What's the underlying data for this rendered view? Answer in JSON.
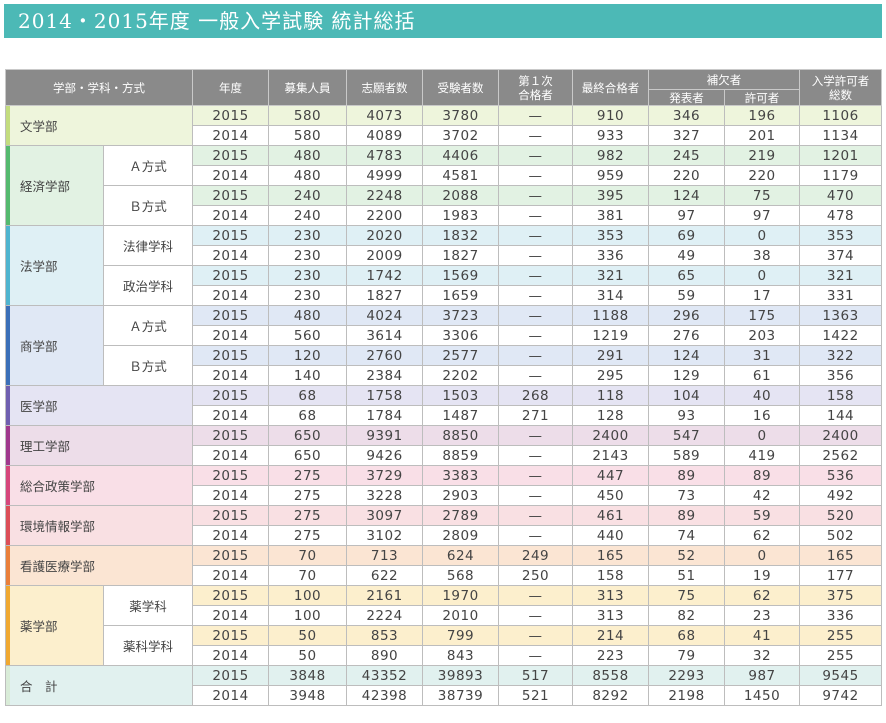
{
  "title": "2014・2015年度 一般入学試験 統計総括",
  "headers": {
    "dept": "学部・学科・方式",
    "year": "年度",
    "quota": "募集人員",
    "applicants": "志願者数",
    "examinees": "受験者数",
    "first_pass_line1": "第１次",
    "first_pass_line2": "合格者",
    "final_pass": "最終合格者",
    "supplement": "補欠者",
    "announced": "発表者",
    "permitted": "許可者",
    "admit_line1": "入学許可者",
    "admit_line2": "総数"
  },
  "colors": {
    "header": "#8a8a8a",
    "title_bar": "#4cb9b6",
    "faculties": {
      "bungaku": {
        "bar": "#c3dc7e",
        "bg": "#eef5dc"
      },
      "keizai": {
        "bar": "#54b96e",
        "bg": "#e2f2e3"
      },
      "hogaku": {
        "bar": "#4fb4cf",
        "bg": "#dff0f5"
      },
      "shogaku": {
        "bar": "#3b6fb8",
        "bg": "#e0e8f5"
      },
      "igaku": {
        "bar": "#6f5fb0",
        "bg": "#e5e4f3"
      },
      "riko": {
        "bar": "#a0388d",
        "bg": "#eddde9"
      },
      "sogo": {
        "bar": "#d6467b",
        "bg": "#f9dfe7"
      },
      "kankyo": {
        "bar": "#dc4e57",
        "bg": "#f9e0e3"
      },
      "kango": {
        "bar": "#ea7f3a",
        "bg": "#fbe5d3"
      },
      "yaku": {
        "bar": "#f0a830",
        "bg": "#fcefcd"
      },
      "total": {
        "bar": "#d9ecd8",
        "bg": "#e1f1ef"
      }
    }
  },
  "faculties": [
    {
      "key": "bungaku",
      "name": "文学部",
      "groups": [
        {
          "sub": "",
          "rows": [
            {
              "year": "2015",
              "quota": "580",
              "applicants": "4073",
              "examinees": "3780",
              "first": "—",
              "final": "910",
              "announced": "346",
              "permitted": "196",
              "admitted": "1106"
            },
            {
              "year": "2014",
              "quota": "580",
              "applicants": "4089",
              "examinees": "3702",
              "first": "—",
              "final": "933",
              "announced": "327",
              "permitted": "201",
              "admitted": "1134"
            }
          ]
        }
      ]
    },
    {
      "key": "keizai",
      "name": "経済学部",
      "groups": [
        {
          "sub": "Ａ方式",
          "rows": [
            {
              "year": "2015",
              "quota": "480",
              "applicants": "4783",
              "examinees": "4406",
              "first": "—",
              "final": "982",
              "announced": "245",
              "permitted": "219",
              "admitted": "1201"
            },
            {
              "year": "2014",
              "quota": "480",
              "applicants": "4999",
              "examinees": "4581",
              "first": "—",
              "final": "959",
              "announced": "220",
              "permitted": "220",
              "admitted": "1179"
            }
          ]
        },
        {
          "sub": "Ｂ方式",
          "rows": [
            {
              "year": "2015",
              "quota": "240",
              "applicants": "2248",
              "examinees": "2088",
              "first": "—",
              "final": "395",
              "announced": "124",
              "permitted": "75",
              "admitted": "470"
            },
            {
              "year": "2014",
              "quota": "240",
              "applicants": "2200",
              "examinees": "1983",
              "first": "—",
              "final": "381",
              "announced": "97",
              "permitted": "97",
              "admitted": "478"
            }
          ]
        }
      ]
    },
    {
      "key": "hogaku",
      "name": "法学部",
      "groups": [
        {
          "sub": "法律学科",
          "rows": [
            {
              "year": "2015",
              "quota": "230",
              "applicants": "2020",
              "examinees": "1832",
              "first": "—",
              "final": "353",
              "announced": "69",
              "permitted": "0",
              "admitted": "353"
            },
            {
              "year": "2014",
              "quota": "230",
              "applicants": "2009",
              "examinees": "1827",
              "first": "—",
              "final": "336",
              "announced": "49",
              "permitted": "38",
              "admitted": "374"
            }
          ]
        },
        {
          "sub": "政治学科",
          "rows": [
            {
              "year": "2015",
              "quota": "230",
              "applicants": "1742",
              "examinees": "1569",
              "first": "—",
              "final": "321",
              "announced": "65",
              "permitted": "0",
              "admitted": "321"
            },
            {
              "year": "2014",
              "quota": "230",
              "applicants": "1827",
              "examinees": "1659",
              "first": "—",
              "final": "314",
              "announced": "59",
              "permitted": "17",
              "admitted": "331"
            }
          ]
        }
      ]
    },
    {
      "key": "shogaku",
      "name": "商学部",
      "groups": [
        {
          "sub": "Ａ方式",
          "rows": [
            {
              "year": "2015",
              "quota": "480",
              "applicants": "4024",
              "examinees": "3723",
              "first": "—",
              "final": "1188",
              "announced": "296",
              "permitted": "175",
              "admitted": "1363"
            },
            {
              "year": "2014",
              "quota": "560",
              "applicants": "3614",
              "examinees": "3306",
              "first": "—",
              "final": "1219",
              "announced": "276",
              "permitted": "203",
              "admitted": "1422"
            }
          ]
        },
        {
          "sub": "Ｂ方式",
          "rows": [
            {
              "year": "2015",
              "quota": "120",
              "applicants": "2760",
              "examinees": "2577",
              "first": "—",
              "final": "291",
              "announced": "124",
              "permitted": "31",
              "admitted": "322"
            },
            {
              "year": "2014",
              "quota": "140",
              "applicants": "2384",
              "examinees": "2202",
              "first": "—",
              "final": "295",
              "announced": "129",
              "permitted": "61",
              "admitted": "356"
            }
          ]
        }
      ]
    },
    {
      "key": "igaku",
      "name": "医学部",
      "groups": [
        {
          "sub": "",
          "rows": [
            {
              "year": "2015",
              "quota": "68",
              "applicants": "1758",
              "examinees": "1503",
              "first": "268",
              "final": "118",
              "announced": "104",
              "permitted": "40",
              "admitted": "158"
            },
            {
              "year": "2014",
              "quota": "68",
              "applicants": "1784",
              "examinees": "1487",
              "first": "271",
              "final": "128",
              "announced": "93",
              "permitted": "16",
              "admitted": "144"
            }
          ]
        }
      ]
    },
    {
      "key": "riko",
      "name": "理工学部",
      "groups": [
        {
          "sub": "",
          "rows": [
            {
              "year": "2015",
              "quota": "650",
              "applicants": "9391",
              "examinees": "8850",
              "first": "—",
              "final": "2400",
              "announced": "547",
              "permitted": "0",
              "admitted": "2400"
            },
            {
              "year": "2014",
              "quota": "650",
              "applicants": "9426",
              "examinees": "8859",
              "first": "—",
              "final": "2143",
              "announced": "589",
              "permitted": "419",
              "admitted": "2562"
            }
          ]
        }
      ]
    },
    {
      "key": "sogo",
      "name": "総合政策学部",
      "groups": [
        {
          "sub": "",
          "rows": [
            {
              "year": "2015",
              "quota": "275",
              "applicants": "3729",
              "examinees": "3383",
              "first": "—",
              "final": "447",
              "announced": "89",
              "permitted": "89",
              "admitted": "536"
            },
            {
              "year": "2014",
              "quota": "275",
              "applicants": "3228",
              "examinees": "2903",
              "first": "—",
              "final": "450",
              "announced": "73",
              "permitted": "42",
              "admitted": "492"
            }
          ]
        }
      ]
    },
    {
      "key": "kankyo",
      "name": "環境情報学部",
      "groups": [
        {
          "sub": "",
          "rows": [
            {
              "year": "2015",
              "quota": "275",
              "applicants": "3097",
              "examinees": "2789",
              "first": "—",
              "final": "461",
              "announced": "89",
              "permitted": "59",
              "admitted": "520"
            },
            {
              "year": "2014",
              "quota": "275",
              "applicants": "3102",
              "examinees": "2809",
              "first": "—",
              "final": "440",
              "announced": "74",
              "permitted": "62",
              "admitted": "502"
            }
          ]
        }
      ]
    },
    {
      "key": "kango",
      "name": "看護医療学部",
      "groups": [
        {
          "sub": "",
          "rows": [
            {
              "year": "2015",
              "quota": "70",
              "applicants": "713",
              "examinees": "624",
              "first": "249",
              "final": "165",
              "announced": "52",
              "permitted": "0",
              "admitted": "165"
            },
            {
              "year": "2014",
              "quota": "70",
              "applicants": "622",
              "examinees": "568",
              "first": "250",
              "final": "158",
              "announced": "51",
              "permitted": "19",
              "admitted": "177"
            }
          ]
        }
      ]
    },
    {
      "key": "yaku",
      "name": "薬学部",
      "groups": [
        {
          "sub": "薬学科",
          "rows": [
            {
              "year": "2015",
              "quota": "100",
              "applicants": "2161",
              "examinees": "1970",
              "first": "—",
              "final": "313",
              "announced": "75",
              "permitted": "62",
              "admitted": "375"
            },
            {
              "year": "2014",
              "quota": "100",
              "applicants": "2224",
              "examinees": "2010",
              "first": "—",
              "final": "313",
              "announced": "82",
              "permitted": "23",
              "admitted": "336"
            }
          ]
        },
        {
          "sub": "薬科学科",
          "rows": [
            {
              "year": "2015",
              "quota": "50",
              "applicants": "853",
              "examinees": "799",
              "first": "—",
              "final": "214",
              "announced": "68",
              "permitted": "41",
              "admitted": "255"
            },
            {
              "year": "2014",
              "quota": "50",
              "applicants": "890",
              "examinees": "843",
              "first": "—",
              "final": "223",
              "announced": "79",
              "permitted": "32",
              "admitted": "255"
            }
          ]
        }
      ]
    },
    {
      "key": "total",
      "name": "合　計",
      "groups": [
        {
          "sub": "",
          "rows": [
            {
              "year": "2015",
              "quota": "3848",
              "applicants": "43352",
              "examinees": "39893",
              "first": "517",
              "final": "8558",
              "announced": "2293",
              "permitted": "987",
              "admitted": "9545"
            },
            {
              "year": "2014",
              "quota": "3948",
              "applicants": "42398",
              "examinees": "38739",
              "first": "521",
              "final": "8292",
              "announced": "2198",
              "permitted": "1450",
              "admitted": "9742"
            }
          ]
        }
      ]
    }
  ]
}
